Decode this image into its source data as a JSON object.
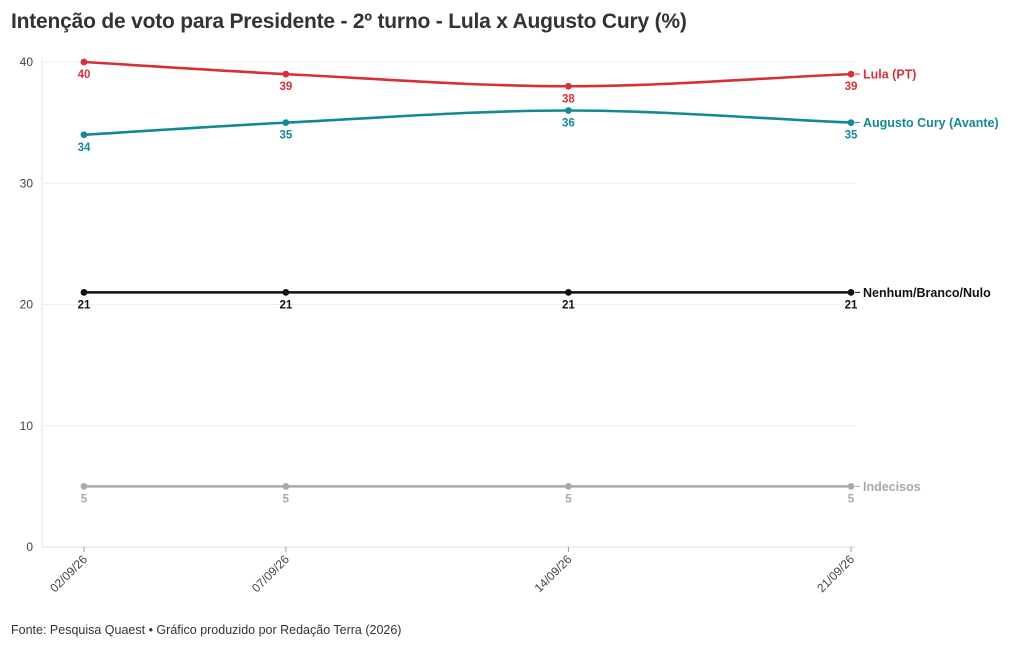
{
  "title": "Intenção de voto para Presidente - 2º turno - Lula x Augusto Cury (%)",
  "source": "Fonte: Pesquisa Quaest • Gráfico produzido por Redação Terra (2026)",
  "chart_data": {
    "type": "line",
    "title": "Intenção de voto para Presidente - 2º turno - Lula x Augusto Cury (%)",
    "xlabel": "",
    "ylabel": "",
    "x": [
      "02/09/26",
      "07/09/26",
      "14/09/26",
      "21/09/26"
    ],
    "x_days": [
      2,
      7,
      14,
      21
    ],
    "ylim": [
      0,
      40
    ],
    "yticks": [
      0,
      10,
      20,
      30,
      40
    ],
    "grid": true,
    "legend": "direct labels at right end of lines",
    "series": [
      {
        "name": "Lula (PT)",
        "color": "#d62f37",
        "values": [
          40,
          39,
          38,
          39
        ],
        "label_pos": "below"
      },
      {
        "name": "Augusto Cury (Avante)",
        "color": "#138a93",
        "values": [
          34,
          35,
          36,
          35
        ],
        "label_pos": "below"
      },
      {
        "name": "Nenhum/Branco/Nulo",
        "color": "#111111",
        "values": [
          21,
          21,
          21,
          21
        ],
        "label_pos": "below"
      },
      {
        "name": "Indecisos",
        "color": "#a7a9b0",
        "values": [
          5,
          5,
          5,
          5
        ],
        "label_pos": "below"
      }
    ]
  }
}
